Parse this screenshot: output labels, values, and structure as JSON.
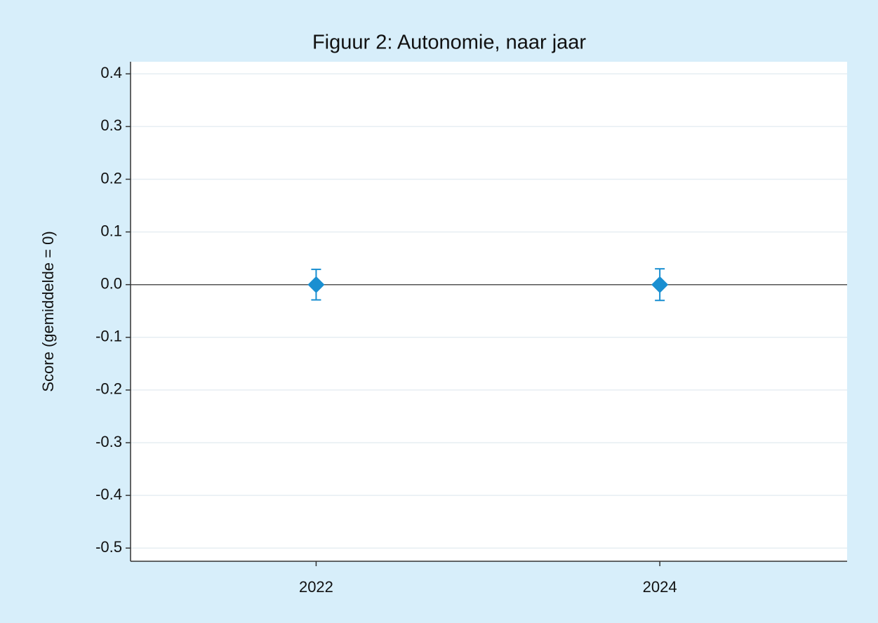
{
  "chart_data": {
    "type": "errorbar",
    "title": "Figuur 2: Autonomie, naar jaar",
    "y_label": "Score (gemiddelde = 0)",
    "x": [
      2022,
      2024
    ],
    "xlim": [
      2020.92,
      2025.09
    ],
    "xticks": [
      2022,
      2024
    ],
    "series": [
      {
        "color": "#1a8fd1",
        "values": [
          0,
          0
        ],
        "errors": [
          0.029,
          0.03
        ]
      }
    ],
    "ylim": [
      -0.525,
      0.423
    ],
    "yticks": [
      0.4,
      0.3,
      0.2,
      0.1,
      {
        "value": 0,
        "label": "0.0"
      },
      -0.1,
      -0.2,
      -0.3,
      -0.4,
      -0.5
    ],
    "reference_line": 0,
    "grid": true
  }
}
